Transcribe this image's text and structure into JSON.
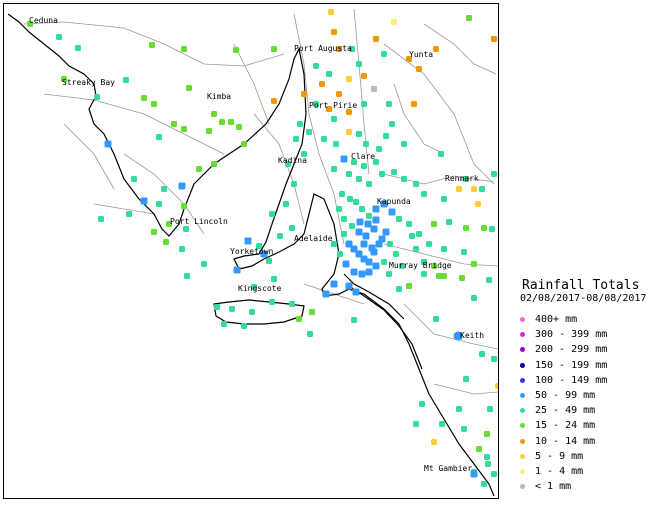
{
  "places": [
    {
      "name": "Ceduna"
    },
    {
      "name": "Port Augusta"
    },
    {
      "name": "Yunta"
    },
    {
      "name": "Streaky Bay"
    },
    {
      "name": "Kimba"
    },
    {
      "name": "Port Pirie"
    },
    {
      "name": "Clare"
    },
    {
      "name": "Kadina"
    },
    {
      "name": "Renmark"
    },
    {
      "name": "Kapunda"
    },
    {
      "name": "Port Lincoln"
    },
    {
      "name": "Adelaide"
    },
    {
      "name": "Yorketown"
    },
    {
      "name": "Murray Bridge"
    },
    {
      "name": "Kingscote"
    },
    {
      "name": "Keith"
    },
    {
      "name": "Mt Gambier"
    }
  ],
  "legend": {
    "title": "Rainfall Totals",
    "dates": "02/08/2017-08/08/2017",
    "items": [
      {
        "label": "400+ mm",
        "color": "#ff66cc"
      },
      {
        "label": "300 - 399 mm",
        "color": "#cc33cc"
      },
      {
        "label": "200 - 299 mm",
        "color": "#9900cc"
      },
      {
        "label": "150 - 199 mm",
        "color": "#000099"
      },
      {
        "label": "100 - 149 mm",
        "color": "#3333ff"
      },
      {
        "label": "50 - 99 mm",
        "color": "#3399ff"
      },
      {
        "label": "25 - 49 mm",
        "color": "#33dd99"
      },
      {
        "label": "15 - 24 mm",
        "color": "#66dd33"
      },
      {
        "label": "10 - 14 mm",
        "color": "#ee9900"
      },
      {
        "label": "5 - 9 mm",
        "color": "#ffcc33"
      },
      {
        "label": "1 - 4 mm",
        "color": "#ffee77"
      },
      {
        "label": "< 1 mm",
        "color": "#bbbbbb"
      }
    ]
  }
}
